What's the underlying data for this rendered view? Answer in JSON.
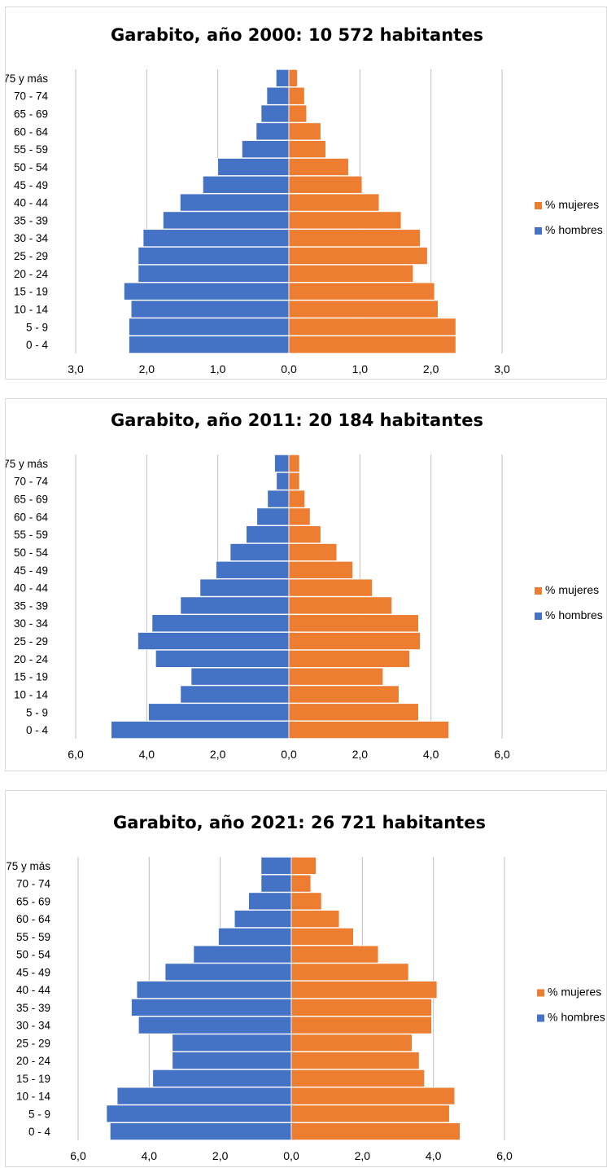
{
  "chart_data": [
    {
      "type": "bar",
      "orientation": "horizontal",
      "title": "Garabito, año 2000: 10 572 habitantes",
      "categories": [
        "0 - 4",
        "5 - 9",
        "10 - 14",
        "15 - 19",
        "20 - 24",
        "25 - 29",
        "30 - 34",
        "35 - 39",
        "40 - 44",
        "45 - 49",
        "50 - 54",
        "55 - 59",
        "60 - 64",
        "65 - 69",
        "70 - 74",
        "75 y más"
      ],
      "series": [
        {
          "name": "% mujeres",
          "color": "#ed7d31",
          "values": [
            2.35,
            2.35,
            2.1,
            2.05,
            1.75,
            1.95,
            1.85,
            1.58,
            1.27,
            1.03,
            0.84,
            0.52,
            0.45,
            0.25,
            0.22,
            0.12
          ]
        },
        {
          "name": "% hombres",
          "color": "#4472c4",
          "values": [
            2.25,
            2.25,
            2.22,
            2.32,
            2.12,
            2.12,
            2.05,
            1.77,
            1.53,
            1.21,
            1.0,
            0.66,
            0.46,
            0.39,
            0.31,
            0.18
          ]
        }
      ],
      "xlim": [
        -3,
        3
      ],
      "ticks": [
        "3,0",
        "2,0",
        "1,0",
        "0,0",
        "1,0",
        "2,0",
        "3,0"
      ],
      "grid": true,
      "legend": "right"
    },
    {
      "type": "bar",
      "orientation": "horizontal",
      "title": "Garabito, año 2011: 20 184 habitantes",
      "categories": [
        "0 - 4",
        "5 - 9",
        "10 - 14",
        "15 - 19",
        "20 - 24",
        "25 - 29",
        "30 - 34",
        "35 - 39",
        "40 - 44",
        "45 - 49",
        "50 - 54",
        "55 - 59",
        "60 - 64",
        "65 - 69",
        "70 - 74",
        "75 y más"
      ],
      "series": [
        {
          "name": "% mujeres",
          "color": "#ed7d31",
          "values": [
            4.5,
            3.65,
            3.1,
            2.65,
            3.4,
            3.7,
            3.65,
            2.9,
            2.35,
            1.8,
            1.35,
            0.9,
            0.6,
            0.45,
            0.3,
            0.3
          ]
        },
        {
          "name": "% hombres",
          "color": "#4472c4",
          "values": [
            5.0,
            3.95,
            3.05,
            2.75,
            3.75,
            4.25,
            3.85,
            3.05,
            2.5,
            2.05,
            1.65,
            1.2,
            0.9,
            0.6,
            0.35,
            0.4
          ]
        }
      ],
      "xlim": [
        -6,
        6
      ],
      "ticks": [
        "6,0",
        "4,0",
        "2,0",
        "0,0",
        "2,0",
        "4,0",
        "6,0"
      ],
      "grid": true,
      "legend": "right"
    },
    {
      "type": "bar",
      "orientation": "horizontal",
      "title": "Garabito, año 2021: 26 721 habitantes",
      "categories": [
        "0 - 4",
        "5 - 9",
        "10 - 14",
        "15 - 19",
        "20 - 24",
        "25 - 29",
        "30 - 34",
        "35 - 39",
        "40 - 44",
        "45 - 49",
        "50 - 54",
        "55 - 59",
        "60 - 64",
        "65 - 69",
        "70 - 74",
        "75 y más"
      ],
      "series": [
        {
          "name": "% mujeres",
          "color": "#ed7d31",
          "values": [
            4.75,
            4.45,
            4.6,
            3.75,
            3.6,
            3.4,
            3.95,
            3.95,
            4.1,
            3.3,
            2.45,
            1.75,
            1.35,
            0.85,
            0.55,
            0.7
          ]
        },
        {
          "name": "% hombres",
          "color": "#4472c4",
          "values": [
            5.1,
            5.2,
            4.9,
            3.9,
            3.35,
            3.35,
            4.3,
            4.5,
            4.35,
            3.55,
            2.75,
            2.05,
            1.6,
            1.2,
            0.85,
            0.85
          ]
        }
      ],
      "xlim": [
        -6,
        6
      ],
      "ticks": [
        "6,0",
        "4,0",
        "2,0",
        "0,0",
        "2,0",
        "4,0",
        "6,0"
      ],
      "grid": true,
      "legend": "right"
    }
  ]
}
